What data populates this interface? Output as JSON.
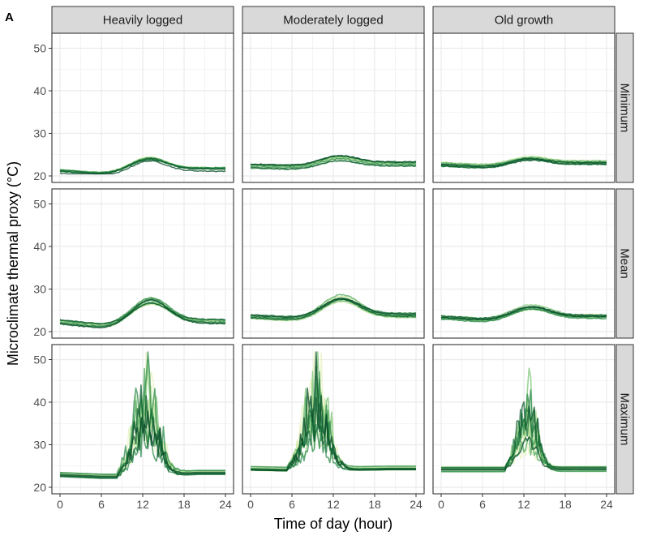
{
  "figure": {
    "panel_letter": "A"
  },
  "colors": {
    "panel_border": "#333333",
    "strip_fill": "#d9d9d9",
    "grid": "#ebebeb",
    "palette": [
      "#e8f3c0",
      "#cde8a6",
      "#a8d98c",
      "#7cc474",
      "#4ea85e",
      "#2e8b4c",
      "#17703a",
      "#0b5a2c",
      "#06492a"
    ]
  },
  "chart_data": {
    "type": "line",
    "facet_columns": [
      "Heavily logged",
      "Moderately logged",
      "Old growth"
    ],
    "facet_rows": [
      "Minimum",
      "Mean",
      "Maximum"
    ],
    "xlabel": "Time of day (hour)",
    "ylabel": "Microclimate thermal proxy (°C)",
    "xlim": [
      0,
      24
    ],
    "ylim": [
      20,
      52
    ],
    "xticks": [
      0,
      6,
      12,
      18,
      24
    ],
    "yticks": [
      20,
      30,
      40,
      50
    ],
    "grid": true,
    "series_per_panel": 12,
    "panels": [
      {
        "row": "Minimum",
        "col": "Heavily logged",
        "baseline_night": 21,
        "baseline_pre_dawn": 20.3,
        "midday_peak": 24.5,
        "evening": 21.5
      },
      {
        "row": "Minimum",
        "col": "Moderately logged",
        "baseline_night": 22.3,
        "baseline_pre_dawn": 22,
        "midday_peak": 24.5,
        "evening": 22.8
      },
      {
        "row": "Minimum",
        "col": "Old growth",
        "baseline_night": 22.8,
        "baseline_pre_dawn": 22.3,
        "midday_peak": 24.5,
        "evening": 23.2
      },
      {
        "row": "Mean",
        "col": "Heavily logged",
        "baseline_night": 22.3,
        "baseline_pre_dawn": 21.3,
        "midday_peak": 28,
        "evening": 22.4
      },
      {
        "row": "Mean",
        "col": "Moderately logged",
        "baseline_night": 23.5,
        "baseline_pre_dawn": 23,
        "midday_peak": 28.5,
        "evening": 23.8
      },
      {
        "row": "Mean",
        "col": "Old growth",
        "baseline_night": 23.4,
        "baseline_pre_dawn": 22.8,
        "midday_peak": 26,
        "evening": 23.6
      },
      {
        "row": "Maximum",
        "col": "Heavily logged",
        "baseline_night": 23,
        "baseline_pre_dawn": 22.6,
        "midday_peak": 52,
        "evening": 23.5
      },
      {
        "row": "Maximum",
        "col": "Moderately logged",
        "baseline_night": 24.5,
        "baseline_pre_dawn": 24.3,
        "midday_peak": 48.5,
        "evening": 24.6
      },
      {
        "row": "Maximum",
        "col": "Old growth",
        "baseline_night": 24.2,
        "baseline_pre_dawn": 24.2,
        "midday_peak": 44.5,
        "evening": 24.3
      }
    ]
  }
}
